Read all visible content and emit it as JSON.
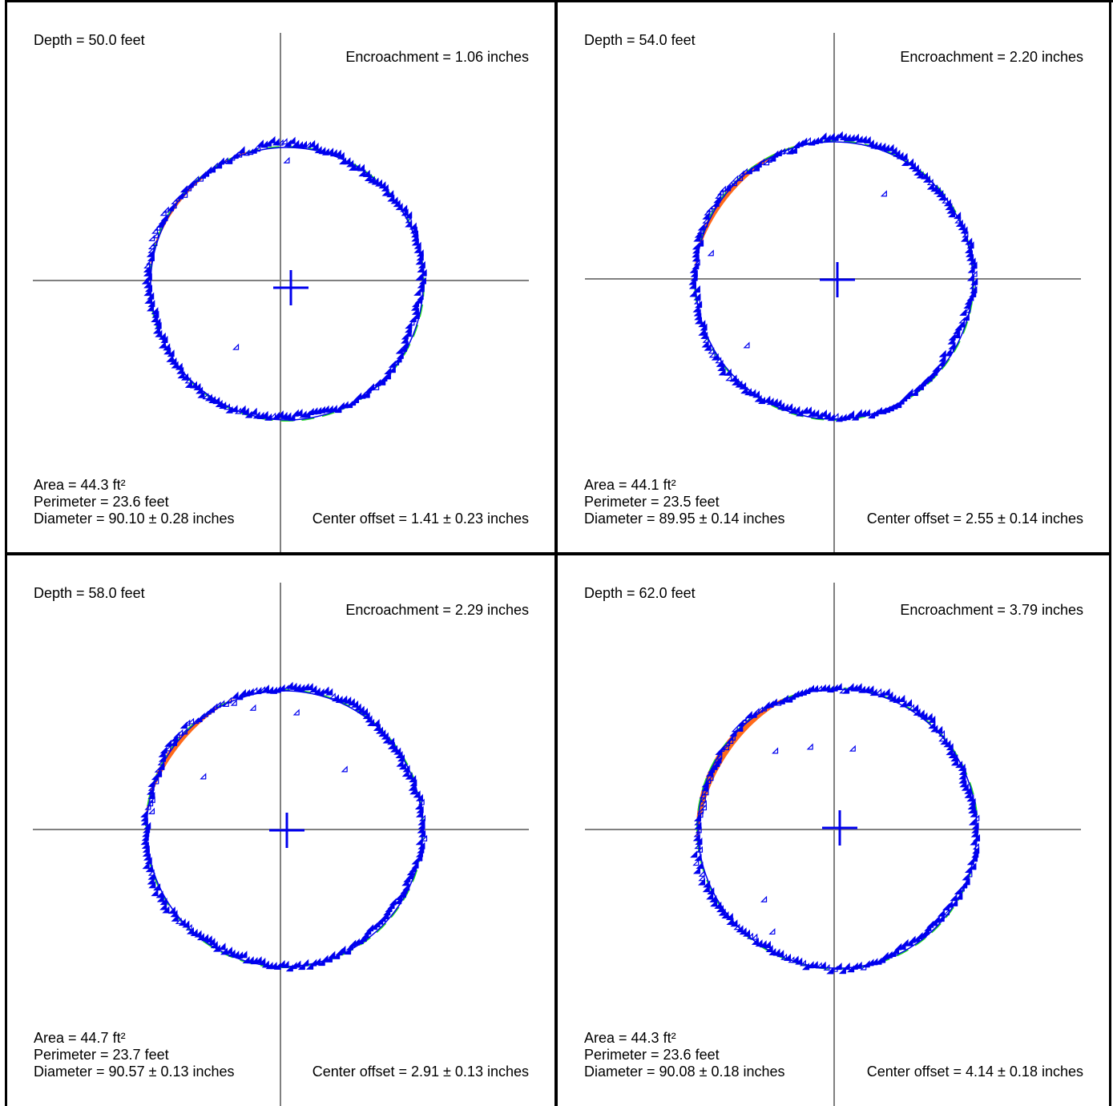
{
  "chart_data": [
    {
      "type": "scatter",
      "depth_label": "Depth = 50.0 feet",
      "encroachment_label": "Encroachment = 1.06 inches",
      "area_label": "Area = 44.3 ft²",
      "perimeter_label": "Perimeter = 23.6 feet",
      "diameter_label": "Diameter = 90.10  ± 0.28 inches",
      "center_offset_label": "Center offset = 1.41 ± 0.23 inches",
      "depth_ft": 50.0,
      "encroachment_in": 1.06,
      "diameter_in": 90.1,
      "center_offset_in": 1.41,
      "encroach_arc_deg": [
        100,
        175
      ]
    },
    {
      "type": "scatter",
      "depth_label": "Depth = 54.0 feet",
      "encroachment_label": "Encroachment = 2.20 inches",
      "area_label": "Area = 44.1 ft²",
      "perimeter_label": "Perimeter = 23.5 feet",
      "diameter_label": "Diameter = 89.95  ± 0.14 inches",
      "center_offset_label": "Center offset = 2.55 ± 0.14 inches",
      "depth_ft": 54.0,
      "encroachment_in": 2.2,
      "diameter_in": 89.95,
      "center_offset_in": 2.55,
      "encroach_arc_deg": [
        105,
        175
      ]
    },
    {
      "type": "scatter",
      "depth_label": "Depth = 58.0 feet",
      "encroachment_label": "Encroachment = 2.29 inches",
      "area_label": "Area = 44.7 ft²",
      "perimeter_label": "Perimeter = 23.7 feet",
      "diameter_label": "Diameter = 90.57  ± 0.13 inches",
      "center_offset_label": "Center offset = 2.91 ± 0.13 inches",
      "depth_ft": 58.0,
      "encroachment_in": 2.29,
      "diameter_in": 90.57,
      "center_offset_in": 2.91,
      "encroach_arc_deg": [
        110,
        175
      ]
    },
    {
      "type": "scatter",
      "depth_label": "Depth = 62.0 feet",
      "encroachment_label": "Encroachment = 3.79 inches",
      "area_label": "Area = 44.3 ft²",
      "perimeter_label": "Perimeter = 23.6 feet",
      "diameter_label": "Diameter = 90.08  ± 0.18 inches",
      "center_offset_label": "Center offset = 4.14 ± 0.18 inches",
      "depth_ft": 62.0,
      "encroachment_in": 3.79,
      "diameter_in": 90.08,
      "center_offset_in": 4.14,
      "encroach_arc_deg": [
        105,
        190
      ]
    }
  ],
  "colors": {
    "points": "#0000ee",
    "fit_circle": "#22dd22",
    "encroachment": "#ff6a1a",
    "axes": "#808080",
    "border": "#000000"
  }
}
